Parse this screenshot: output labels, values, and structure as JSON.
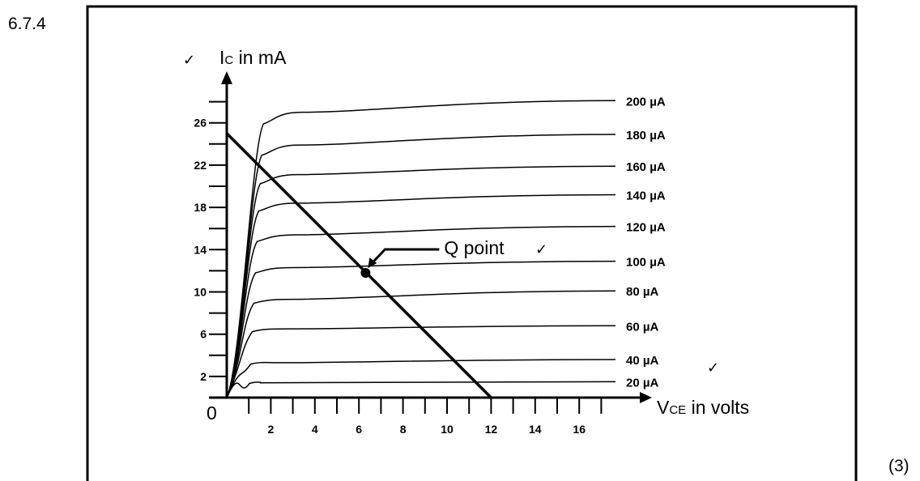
{
  "question_number": "6.7.4",
  "marks": "(3)",
  "check_mark": "✓",
  "chart_data": {
    "type": "line",
    "title": "",
    "x_axis": {
      "label_main": "V",
      "label_sub": "CE",
      "label_rest": " in volts",
      "origin_label": "0",
      "range": [
        0,
        18
      ],
      "ticks": [
        2,
        4,
        6,
        8,
        10,
        12,
        14,
        16
      ]
    },
    "y_axis": {
      "label_main": "I",
      "label_sub": "C",
      "label_rest": " in mA",
      "range": [
        0,
        28
      ],
      "ticks": [
        2,
        6,
        10,
        14,
        18,
        22,
        26
      ]
    },
    "series": [
      {
        "name": "20 µA",
        "sat_v": 1.5,
        "ic_knee": 1.4,
        "ic_end": 1.5
      },
      {
        "name": "40 µA",
        "sat_v": 2.5,
        "ic_knee": 3.3,
        "ic_end": 3.6
      },
      {
        "name": "60 µA",
        "sat_v": 2.8,
        "ic_knee": 6.5,
        "ic_end": 6.8
      },
      {
        "name": "80 µA",
        "sat_v": 3.0,
        "ic_knee": 9.3,
        "ic_end": 10.1
      },
      {
        "name": "100 µA",
        "sat_v": 3.0,
        "ic_knee": 12.3,
        "ic_end": 12.9
      },
      {
        "name": "120 µA",
        "sat_v": 3.2,
        "ic_knee": 15.4,
        "ic_end": 16.2
      },
      {
        "name": "140 µA",
        "sat_v": 3.2,
        "ic_knee": 18.4,
        "ic_end": 19.2
      },
      {
        "name": "160 µA",
        "sat_v": 3.2,
        "ic_knee": 21.1,
        "ic_end": 21.9
      },
      {
        "name": "180 µA",
        "sat_v": 3.3,
        "ic_knee": 23.9,
        "ic_end": 24.9
      },
      {
        "name": "200 µA",
        "sat_v": 3.4,
        "ic_knee": 27.0,
        "ic_end": 28.1
      }
    ],
    "load_line": {
      "x": [
        0,
        12
      ],
      "y": [
        25,
        0
      ]
    },
    "q_point": {
      "label": "Q point",
      "x": 6.3,
      "y": 11.8
    }
  }
}
